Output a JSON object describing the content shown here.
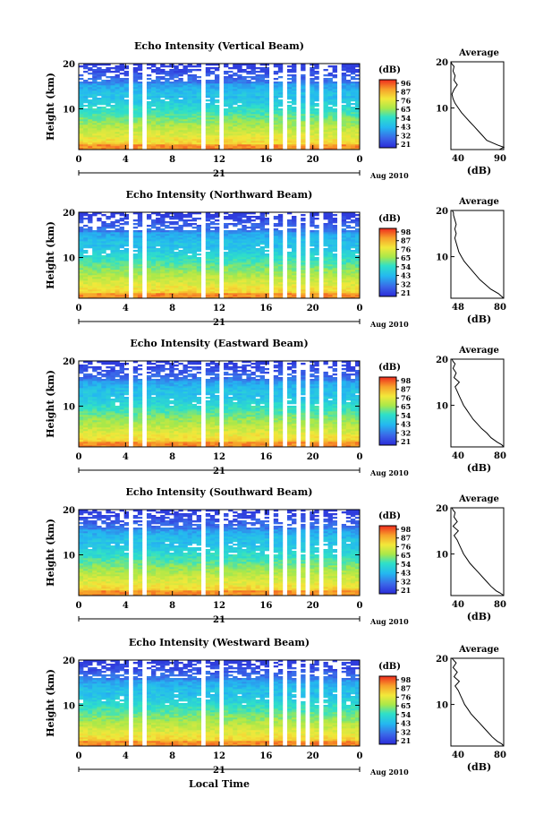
{
  "footer_xlabel": "Local Time",
  "chart_data": [
    {
      "type": "heatmap",
      "title": "Echo Intensity (Vertical Beam)",
      "ylabel": "Height (km)",
      "xlim": [
        0,
        24
      ],
      "ylim": [
        1,
        20
      ],
      "x_ticks": [
        "0",
        "4",
        "8",
        "12",
        "16",
        "20",
        "0"
      ],
      "y_ticks": [
        {
          "v": 10,
          "label": "10"
        },
        {
          "v": 20,
          "label": "20"
        }
      ],
      "date_day": "21",
      "date_month": "Aug 2010",
      "colorbar": {
        "label": "(dB)",
        "ticks": [
          "96",
          "87",
          "76",
          "65",
          "54",
          "43",
          "32",
          "21"
        ]
      },
      "average": {
        "title": "Average",
        "xlabel": "(dB)",
        "xlim": [
          40,
          90
        ],
        "x_ticks": [
          "40",
          "90"
        ],
        "y_ticks": [
          "10",
          "20"
        ],
        "height_km": [
          1,
          1.5,
          2,
          3,
          4,
          5,
          6,
          7,
          8,
          9,
          10,
          11,
          12,
          13,
          14,
          15,
          16,
          17,
          18,
          19,
          19.5,
          20
        ],
        "db": [
          86,
          90,
          84,
          74,
          70,
          66,
          62,
          58,
          54,
          50,
          47,
          44,
          42,
          41,
          43,
          46,
          43,
          44,
          42,
          43,
          41,
          40
        ]
      }
    },
    {
      "type": "heatmap",
      "title": "Echo Intensity (Northward Beam)",
      "ylabel": "Height (km)",
      "xlim": [
        0,
        24
      ],
      "ylim": [
        1,
        20
      ],
      "x_ticks": [
        "0",
        "4",
        "8",
        "12",
        "16",
        "20",
        "0"
      ],
      "y_ticks": [
        {
          "v": 10,
          "label": "10"
        },
        {
          "v": 20,
          "label": "20"
        }
      ],
      "date_day": "21",
      "date_month": "Aug 2010",
      "colorbar": {
        "label": "(dB)",
        "ticks": [
          "98",
          "87",
          "76",
          "65",
          "54",
          "43",
          "32",
          "21"
        ]
      },
      "average": {
        "title": "Average",
        "xlabel": "(dB)",
        "xlim": [
          40,
          80
        ],
        "x_ticks": [
          "48",
          "80"
        ],
        "y_ticks": [
          "10",
          "20"
        ],
        "height_km": [
          1,
          1.5,
          2,
          3,
          4,
          5,
          6,
          7,
          8,
          9,
          10,
          11,
          12,
          13,
          14,
          15,
          16,
          17,
          18,
          19,
          19.5,
          20
        ],
        "db": [
          80,
          78,
          76,
          70,
          66,
          62,
          59,
          56,
          53,
          50,
          48,
          46,
          45,
          44,
          43,
          44,
          43,
          44,
          43,
          42,
          42,
          41
        ]
      }
    },
    {
      "type": "heatmap",
      "title": "Echo Intensity (Eastward Beam)",
      "ylabel": "Height (km)",
      "xlim": [
        0,
        24
      ],
      "ylim": [
        1,
        20
      ],
      "x_ticks": [
        "0",
        "4",
        "8",
        "12",
        "16",
        "20",
        "0"
      ],
      "y_ticks": [
        {
          "v": 10,
          "label": "10"
        },
        {
          "v": 20,
          "label": "20"
        }
      ],
      "date_day": "21",
      "date_month": "Aug 2010",
      "colorbar": {
        "label": "(dB)",
        "ticks": [
          "98",
          "87",
          "76",
          "65",
          "54",
          "43",
          "32",
          "21"
        ]
      },
      "average": {
        "title": "Average",
        "xlabel": "(dB)",
        "xlim": [
          30,
          80
        ],
        "x_ticks": [
          "40",
          "80"
        ],
        "y_ticks": [
          "10",
          "20"
        ],
        "height_km": [
          1,
          1.5,
          2,
          3,
          4,
          5,
          6,
          7,
          8,
          9,
          10,
          11,
          12,
          13,
          14,
          15,
          16,
          17,
          18,
          19,
          19.5,
          20
        ],
        "db": [
          80,
          78,
          74,
          68,
          64,
          59,
          55,
          51,
          48,
          45,
          42,
          40,
          38,
          36,
          34,
          38,
          33,
          35,
          32,
          34,
          32,
          31
        ]
      }
    },
    {
      "type": "heatmap",
      "title": "Echo Intensity (Southward Beam)",
      "ylabel": "Height (km)",
      "xlim": [
        0,
        24
      ],
      "ylim": [
        1,
        20
      ],
      "x_ticks": [
        "0",
        "4",
        "8",
        "12",
        "16",
        "20",
        "0"
      ],
      "y_ticks": [
        {
          "v": 10,
          "label": "10"
        },
        {
          "v": 20,
          "label": "20"
        }
      ],
      "date_day": "21",
      "date_month": "Aug 2010",
      "colorbar": {
        "label": "(dB)",
        "ticks": [
          "98",
          "87",
          "76",
          "65",
          "54",
          "43",
          "32",
          "21"
        ]
      },
      "average": {
        "title": "Average",
        "xlabel": "(dB)",
        "xlim": [
          30,
          80
        ],
        "x_ticks": [
          "40",
          "80"
        ],
        "y_ticks": [
          "10",
          "20"
        ],
        "height_km": [
          1,
          1.5,
          2,
          3,
          4,
          5,
          6,
          7,
          8,
          9,
          10,
          11,
          12,
          13,
          14,
          15,
          16,
          17,
          18,
          19,
          19.5,
          20
        ],
        "db": [
          80,
          77,
          73,
          68,
          64,
          60,
          56,
          52,
          48,
          45,
          42,
          40,
          38,
          36,
          33,
          37,
          32,
          36,
          33,
          34,
          32,
          31
        ]
      }
    },
    {
      "type": "heatmap",
      "title": "Echo Intensity (Westward Beam)",
      "ylabel": "Height (km)",
      "xlim": [
        0,
        24
      ],
      "ylim": [
        1,
        20
      ],
      "x_ticks": [
        "0",
        "4",
        "8",
        "12",
        "16",
        "20",
        "0"
      ],
      "y_ticks": [
        {
          "v": 10,
          "label": "10"
        },
        {
          "v": 20,
          "label": "20"
        }
      ],
      "date_day": "21",
      "date_month": "Aug 2010",
      "colorbar": {
        "label": "(dB)",
        "ticks": [
          "98",
          "87",
          "76",
          "65",
          "54",
          "43",
          "32",
          "21"
        ]
      },
      "average": {
        "title": "Average",
        "xlabel": "(dB)",
        "xlim": [
          30,
          80
        ],
        "x_ticks": [
          "40",
          "80"
        ],
        "y_ticks": [
          "10",
          "20"
        ],
        "height_km": [
          1,
          1.5,
          2,
          3,
          4,
          5,
          6,
          7,
          8,
          9,
          10,
          11,
          12,
          13,
          14,
          15,
          16,
          17,
          18,
          19,
          19.5,
          20
        ],
        "db": [
          80,
          78,
          74,
          69,
          65,
          61,
          57,
          53,
          49,
          46,
          43,
          41,
          39,
          37,
          34,
          38,
          33,
          36,
          32,
          35,
          33,
          31
        ]
      }
    }
  ]
}
